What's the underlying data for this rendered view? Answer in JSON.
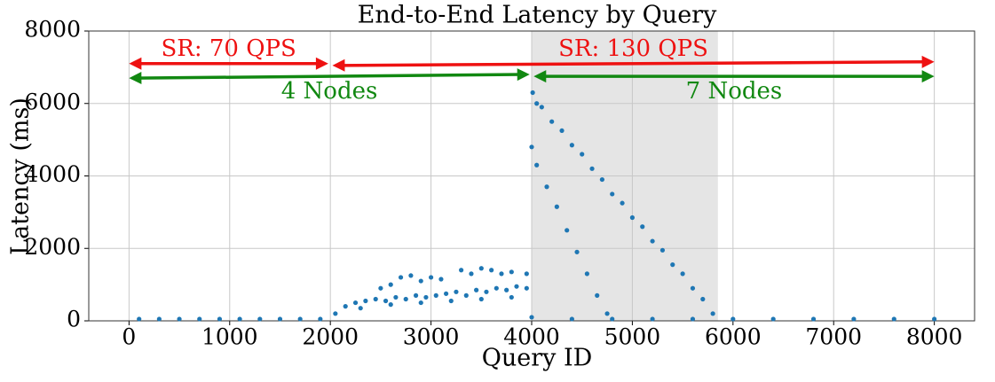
{
  "chart_data": {
    "type": "scatter",
    "title": "End-to-End Latency by Query",
    "x_label": "Query ID",
    "y_label": "Latency (ms)",
    "xlim": [
      -400,
      8400
    ],
    "ylim": [
      0,
      8000
    ],
    "xticks": [
      0,
      1000,
      2000,
      3000,
      4000,
      5000,
      6000,
      7000,
      8000
    ],
    "yticks": [
      0,
      2000,
      4000,
      6000,
      8000
    ],
    "grid": true,
    "color": "#1f77b4",
    "shaded_span": {
      "x": [
        4000,
        5850
      ],
      "color": "#e5e5e5"
    },
    "annotations": [
      {
        "text": "SR: 70 QPS",
        "color": "#ee1111",
        "x": [
          0,
          1980
        ],
        "y": [
          7100,
          7100
        ]
      },
      {
        "text": "SR: 130 QPS",
        "color": "#ee1111",
        "x": [
          2020,
          8000
        ],
        "y": [
          7050,
          7150
        ]
      },
      {
        "text": "4 Nodes",
        "color": "#118811",
        "x": [
          0,
          3980
        ],
        "y": [
          6700,
          6800
        ]
      },
      {
        "text": "7 Nodes",
        "color": "#118811",
        "x": [
          4020,
          8000
        ],
        "y": [
          6750,
          6750
        ]
      }
    ],
    "x": [
      100,
      300,
      500,
      700,
      900,
      1100,
      1300,
      1500,
      1700,
      1900,
      2050,
      2150,
      2250,
      2350,
      2450,
      2550,
      2650,
      2750,
      2850,
      2950,
      3050,
      3150,
      3250,
      3350,
      3450,
      3550,
      3650,
      3750,
      3850,
      3950,
      2300,
      2600,
      2900,
      3200,
      3500,
      3800,
      2500,
      2600,
      2700,
      2800,
      2900,
      3000,
      3100,
      3300,
      3400,
      3500,
      3600,
      3700,
      3800,
      3950,
      4010,
      4050,
      4200,
      4400,
      4600,
      4800,
      5000,
      5200,
      5400,
      5600,
      5800,
      4100,
      4300,
      4500,
      4700,
      4900,
      5100,
      5300,
      5500,
      5700,
      4000,
      4050,
      4150,
      4250,
      4350,
      4450,
      4550,
      4650,
      4750,
      4000,
      4400,
      4800,
      5200,
      5600,
      6000,
      6400,
      6800,
      7200,
      7600,
      8000
    ],
    "y": [
      50,
      50,
      50,
      50,
      50,
      50,
      50,
      50,
      50,
      50,
      200,
      400,
      500,
      550,
      600,
      550,
      650,
      600,
      700,
      650,
      700,
      750,
      800,
      700,
      850,
      800,
      900,
      850,
      950,
      900,
      350,
      450,
      500,
      550,
      600,
      650,
      900,
      1000,
      1200,
      1250,
      1100,
      1200,
      1150,
      1400,
      1300,
      1450,
      1400,
      1300,
      1350,
      1300,
      6300,
      6000,
      5500,
      4850,
      4200,
      3500,
      2850,
      2200,
      1550,
      900,
      200,
      5900,
      5250,
      4600,
      3900,
      3250,
      2600,
      1950,
      1300,
      600,
      4800,
      4300,
      3700,
      3150,
      2500,
      1900,
      1300,
      700,
      200,
      100,
      50,
      50,
      50,
      50,
      50,
      50,
      50,
      50,
      50,
      50
    ]
  }
}
